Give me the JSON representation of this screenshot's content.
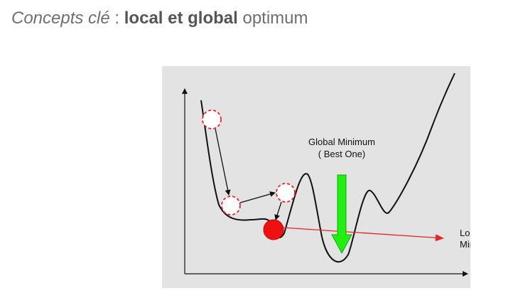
{
  "title": {
    "part1": "Concepts clé",
    "separator": " : ",
    "bold": "local et global",
    "rest": " optimum"
  },
  "diagram": {
    "global_label_line1": "Global Minimum",
    "global_label_line2": "( Best One)",
    "local_label_line1": "Local",
    "local_label_line2": "Minimum",
    "colors": {
      "background": "#e3e3e3",
      "curve": "#111111",
      "ball_active": "#ee1111",
      "ball_dashed": "#ee2222",
      "global_arrow": "#22ee11",
      "local_arrow": "#ee2222"
    }
  }
}
